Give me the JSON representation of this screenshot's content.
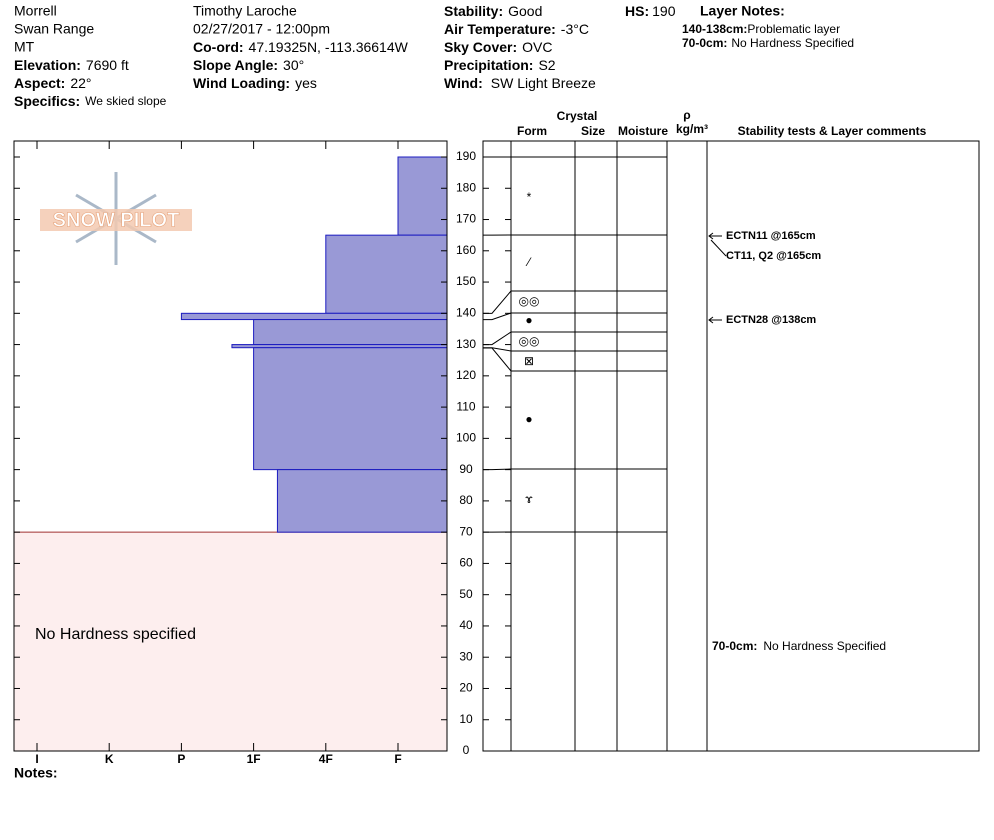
{
  "header": {
    "site": [
      "Morrell",
      "Swan Range",
      "MT"
    ],
    "elevation": {
      "label": "Elevation:",
      "value": "7690 ft"
    },
    "aspect": {
      "label": "Aspect:",
      "value": "22°"
    },
    "specifics": {
      "label": "Specifics:",
      "value": "We skied slope"
    },
    "observer": "Timothy  Laroche",
    "datetime": "02/27/2017 - 12:00pm",
    "coord": {
      "label": "Co-ord:",
      "value": "47.19325N, -113.36614W"
    },
    "slope_angle": {
      "label": "Slope Angle:",
      "value": "30°"
    },
    "wind_loading": {
      "label": "Wind Loading:",
      "value": "yes"
    },
    "stability": {
      "label": "Stability:",
      "value": "Good"
    },
    "air_temperature": {
      "label": "Air Temperature:",
      "value": "-3°C"
    },
    "sky_cover": {
      "label": "Sky Cover:",
      "value": "OVC"
    },
    "precipitation": {
      "label": "Precipitation:",
      "value": "S2"
    },
    "wind": {
      "label": "Wind:",
      "value": "SW Light Breeze"
    },
    "hs": {
      "label": "HS:",
      "value": "190"
    },
    "layer_notes": {
      "title": "Layer Notes:",
      "items": [
        {
          "range": "140-138cm:",
          "note": "Problematic layer"
        },
        {
          "range": "70-0cm:",
          "note": "No Hardness Specified"
        }
      ]
    }
  },
  "logo": "SNOW PILOT",
  "columns": {
    "crystal": "Crystal",
    "form": "Form",
    "size": "Size",
    "moisture": "Moisture",
    "rho": "ρ",
    "density_unit": "kg/m³",
    "comments": "Stability tests & Layer comments"
  },
  "chart_data": {
    "type": "snow-profile",
    "ylim": [
      0,
      190
    ],
    "yticks": [
      0,
      10,
      20,
      30,
      40,
      50,
      60,
      70,
      80,
      90,
      100,
      110,
      120,
      130,
      140,
      150,
      160,
      170,
      180,
      190
    ],
    "hardness_ticks": [
      {
        "value": 0,
        "label": "I"
      },
      {
        "value": 1,
        "label": "K"
      },
      {
        "value": 2,
        "label": "P"
      },
      {
        "value": 3,
        "label": "1F"
      },
      {
        "value": 4,
        "label": "4F"
      },
      {
        "value": 5,
        "label": "F"
      }
    ],
    "layers": [
      {
        "top": 190,
        "bottom": 165,
        "hardness": 5
      },
      {
        "top": 165,
        "bottom": 140,
        "hardness": 4
      },
      {
        "top": 140,
        "bottom": 138,
        "hardness": 2
      },
      {
        "top": 138,
        "bottom": 130,
        "hardness": 3
      },
      {
        "top": 130,
        "bottom": 129,
        "hardness": 2.7
      },
      {
        "top": 129,
        "bottom": 90,
        "hardness": 3
      },
      {
        "top": 90,
        "bottom": 70,
        "hardness": 3.33
      }
    ],
    "no_hardness": {
      "top": 70,
      "bottom": 0,
      "label": "No Hardness specified"
    },
    "grain_forms": [
      "*",
      "⁄",
      "◎◎",
      "●",
      "◎◎",
      "⊠",
      "●",
      "ɤ"
    ],
    "comments": [
      "ECTN11 @165cm",
      "CT11, Q2 @165cm",
      "ECTN28 @138cm"
    ],
    "layer_comment": {
      "range": "70-0cm:",
      "note": "No Hardness Specified"
    }
  },
  "notes": "Notes:"
}
